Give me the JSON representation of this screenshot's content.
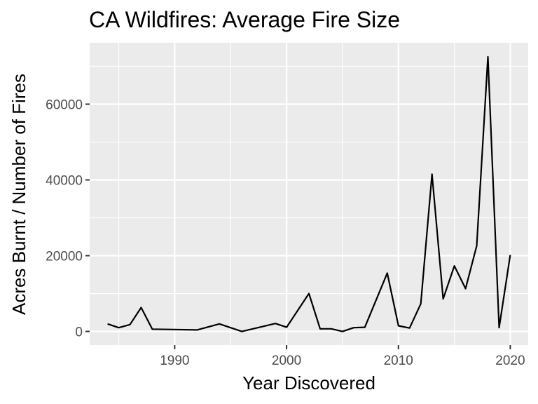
{
  "chart_data": {
    "type": "line",
    "title": "CA Wildfires: Average Fire Size",
    "xlabel": "Year Discovered",
    "ylabel": "Acres Burnt / Number of Fires",
    "xlim": [
      1982.4,
      2021.6
    ],
    "ylim": [
      -3600,
      76200
    ],
    "x_ticks": [
      1990,
      2000,
      2010,
      2020
    ],
    "y_ticks": [
      0,
      20000,
      40000,
      60000
    ],
    "x_tick_labels": [
      "1990",
      "2000",
      "2010",
      "2020"
    ],
    "y_tick_labels": [
      "0",
      "20000",
      "40000",
      "60000"
    ],
    "grid": true,
    "legend": "none",
    "series": [
      {
        "color": "#000000",
        "x": [
          1984,
          1985,
          1986,
          1987,
          1988,
          1992,
          1994,
          1996,
          1999,
          2000,
          2002,
          2003,
          2004,
          2005,
          2006,
          2007,
          2009,
          2010,
          2011,
          2012,
          2013,
          2014,
          2015,
          2016,
          2017,
          2018,
          2019,
          2020
        ],
        "y": [
          2000,
          1000,
          1800,
          6300,
          600,
          400,
          2000,
          0,
          2100,
          1100,
          10000,
          700,
          700,
          0,
          1000,
          1100,
          15400,
          1500,
          900,
          7300,
          41500,
          8600,
          17300,
          11300,
          22600,
          72500,
          1000,
          20200
        ]
      }
    ]
  }
}
